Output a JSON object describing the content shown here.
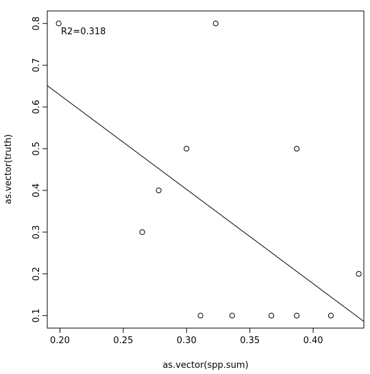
{
  "chart_data": {
    "type": "scatter",
    "xlabel": "as.vector(spp.sum)",
    "ylabel": "as.vector(truth)",
    "annotation": "R2=0.318",
    "x": [
      0.199,
      0.265,
      0.278,
      0.3,
      0.311,
      0.323,
      0.336,
      0.367,
      0.387,
      0.387,
      0.414,
      0.436
    ],
    "y": [
      0.8,
      0.3,
      0.4,
      0.5,
      0.1,
      0.8,
      0.1,
      0.1,
      0.5,
      0.1,
      0.1,
      0.2
    ],
    "fit_line": {
      "x": [
        0.19,
        0.44
      ],
      "y": [
        0.651,
        0.086
      ]
    },
    "xlim": [
      0.19,
      0.44
    ],
    "ylim": [
      0.07,
      0.83
    ],
    "xticks": [
      0.2,
      0.25,
      0.3,
      0.35,
      0.4
    ],
    "xtick_labels": [
      "0.20",
      "0.25",
      "0.30",
      "0.35",
      "0.40"
    ],
    "yticks": [
      0.1,
      0.2,
      0.3,
      0.4,
      0.5,
      0.6,
      0.7,
      0.8
    ],
    "ytick_labels": [
      "0.1",
      "0.2",
      "0.3",
      "0.4",
      "0.5",
      "0.6",
      "0.7",
      "0.8"
    ],
    "grid": false,
    "legend": "none"
  }
}
